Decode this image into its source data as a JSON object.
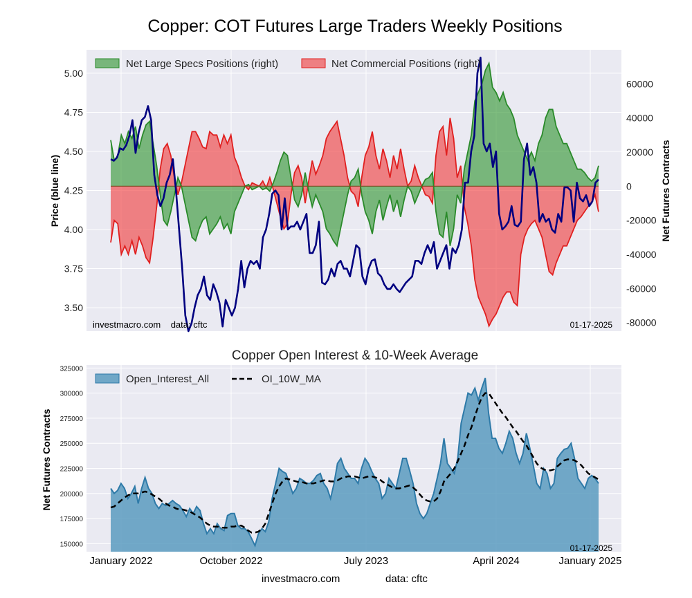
{
  "title": "Copper: COT Futures Large Traders Weekly Positions",
  "footer": {
    "left": "investmacro.com",
    "right": "data: cftc"
  },
  "x_ticks": [
    "January 2022",
    "October 2022",
    "July 2023",
    "April 2024",
    "January 2025"
  ],
  "colors": {
    "plot_bg": "#eaeaf2",
    "price_line": "#000080",
    "specs_fill": "#3a9a3a",
    "specs_line": "#2a8a2a",
    "comm_fill": "#f04545",
    "comm_line": "#e02020",
    "oi_fill": "#5b9bc0",
    "oi_line": "#2e7aa8",
    "ma_line": "#000000"
  },
  "chart_data": [
    {
      "type": "line",
      "title": "",
      "ylabel_left": "Price (blue line)",
      "ylabel_right": "Net Futures Contracts",
      "yticks_left": [
        "5.00",
        "4.75",
        "4.50",
        "4.25",
        "4.00",
        "3.75",
        "3.50"
      ],
      "yticks_right": [
        "60000",
        "40000",
        "20000",
        "0",
        "-20000",
        "-40000",
        "-60000",
        "-80000"
      ],
      "ylim_left": [
        3.35,
        5.15
      ],
      "ylim_right": [
        -85000,
        80000
      ],
      "legend_position": "top-left",
      "annotation_left": "investmacro.com    data: cftc",
      "annotation_right": "01-17-2025",
      "grid": true,
      "series": [
        {
          "name": "Net Large Specs Positions (right)",
          "axis": "right",
          "kind": "area",
          "values": [
            27000,
            15000,
            18000,
            30000,
            25000,
            32000,
            28000,
            35000,
            22000,
            30000,
            36000,
            38000,
            25000,
            12000,
            -5000,
            -20000,
            -23000,
            -15000,
            -5000,
            5000,
            0,
            -10000,
            -20000,
            -30000,
            -32000,
            -25000,
            -20000,
            -18000,
            -28000,
            -25000,
            -22000,
            -18000,
            -25000,
            -22000,
            -28000,
            -15000,
            -10000,
            -5000,
            0,
            1000,
            -2000,
            -1000,
            0,
            -2000,
            -1000,
            -3000,
            2000,
            8000,
            15000,
            20000,
            18000,
            5000,
            -8000,
            -12000,
            -5000,
            8000,
            -3000,
            -12000,
            -5000,
            -10000,
            -15000,
            -25000,
            -28000,
            -32000,
            -35000,
            -25000,
            -15000,
            -5000,
            3000,
            5000,
            10000,
            -5000,
            -15000,
            -20000,
            -28000,
            -15000,
            -8000,
            -20000,
            -12000,
            -5000,
            -15000,
            -8000,
            -18000,
            -8000,
            0,
            -3000,
            -10000,
            -5000,
            0,
            4000,
            5000,
            8000,
            -15000,
            -28000,
            -30000,
            -15000,
            -35000,
            -25000,
            -5000,
            -10000,
            10000,
            20000,
            30000,
            50000,
            55000,
            60000,
            68000,
            72000,
            58000,
            55000,
            50000,
            55000,
            48000,
            45000,
            40000,
            30000,
            25000,
            20000,
            15000,
            20000,
            15000,
            25000,
            30000,
            40000,
            45000,
            45000,
            35000,
            30000,
            25000,
            25000,
            20000,
            15000,
            10000,
            10000,
            8000,
            5000,
            3000,
            5000,
            12000
          ]
        },
        {
          "name": "Net Commercial Positions (right)",
          "axis": "right",
          "kind": "area",
          "values": [
            -33000,
            -20000,
            -22000,
            -40000,
            -35000,
            -40000,
            -32000,
            -40000,
            -30000,
            -35000,
            -42000,
            -45000,
            -30000,
            -12000,
            10000,
            22000,
            25000,
            18000,
            5000,
            -5000,
            2000,
            12000,
            22000,
            32000,
            32000,
            28000,
            23000,
            22000,
            32000,
            30000,
            30000,
            23000,
            30000,
            25000,
            30000,
            17000,
            12000,
            5000,
            0,
            -2000,
            2000,
            1000,
            0,
            3000,
            -1000,
            5000,
            -2000,
            -10000,
            -18000,
            -25000,
            -22000,
            -5000,
            8000,
            12000,
            5000,
            -10000,
            3000,
            15000,
            7000,
            12000,
            18000,
            28000,
            32000,
            35000,
            38000,
            28000,
            18000,
            5000,
            -3000,
            -5000,
            -12000,
            5000,
            18000,
            23000,
            32000,
            18000,
            10000,
            22000,
            15000,
            5000,
            18000,
            10000,
            22000,
            10000,
            0,
            3000,
            12000,
            5000,
            0,
            -5000,
            -6000,
            -10000,
            18000,
            32000,
            35000,
            18000,
            40000,
            28000,
            5000,
            12000,
            -12000,
            -22000,
            -35000,
            -55000,
            -65000,
            -70000,
            -75000,
            -82000,
            -78000,
            -75000,
            -70000,
            -65000,
            -62000,
            -62000,
            -68000,
            -70000,
            -40000,
            -30000,
            -25000,
            -22000,
            -20000,
            -25000,
            -30000,
            -40000,
            -50000,
            -52000,
            -45000,
            -40000,
            -35000,
            -35000,
            -30000,
            -25000,
            -20000,
            -18000,
            -15000,
            -12000,
            -10000,
            -5000,
            -15000
          ]
        },
        {
          "name": "Price",
          "axis": "left",
          "kind": "line",
          "values": [
            4.45,
            4.44,
            4.46,
            4.52,
            4.51,
            4.54,
            4.6,
            4.7,
            4.49,
            4.62,
            4.7,
            4.72,
            4.79,
            4.7,
            4.35,
            4.22,
            4.15,
            4.2,
            4.3,
            4.35,
            4.45,
            4.25,
            4.0,
            3.75,
            3.45,
            3.35,
            3.4,
            3.5,
            3.58,
            3.62,
            3.7,
            3.58,
            3.55,
            3.65,
            3.6,
            3.53,
            3.38,
            3.55,
            3.5,
            3.45,
            3.5,
            3.62,
            3.8,
            3.63,
            3.75,
            3.8,
            3.78,
            3.8,
            3.75,
            3.95,
            4.0,
            4.1,
            4.23,
            4.25,
            4.22,
            4.0,
            4.2,
            4.0,
            4.02,
            4.02,
            4.05,
            4.0,
            4.05,
            4.1,
            3.85,
            3.85,
            3.9,
            4.05,
            3.66,
            3.65,
            3.68,
            3.75,
            3.7,
            3.78,
            3.8,
            3.75,
            3.75,
            3.7,
            3.8,
            3.9,
            3.88,
            3.7,
            3.65,
            3.75,
            3.8,
            3.81,
            3.72,
            3.7,
            3.65,
            3.62,
            3.62,
            3.65,
            3.62,
            3.6,
            3.63,
            3.66,
            3.68,
            3.7,
            3.8,
            3.8,
            3.78,
            3.85,
            3.9,
            3.85,
            3.92,
            3.75,
            3.8,
            3.85,
            3.9,
            3.75,
            3.88,
            3.85,
            3.9,
            4.0,
            4.3,
            4.3,
            4.5,
            4.6,
            5.0,
            5.1,
            4.55,
            4.5,
            4.55,
            4.4,
            4.5,
            4.1,
            4.0,
            4.02,
            4.05,
            4.15,
            4.03,
            4.02,
            4.05,
            4.45,
            4.55,
            4.35,
            4.4,
            4.3,
            4.05,
            4.1,
            4.05,
            4.07,
            4.0,
            3.98,
            4.1,
            4.05,
            4.27,
            4.27,
            4.25,
            4.05,
            4.3,
            4.2,
            4.18,
            4.22,
            4.15,
            4.18,
            4.3,
            4.32
          ]
        }
      ]
    },
    {
      "type": "area",
      "title": "Copper Open Interest & 10-Week Average",
      "ylabel": "Net Futures Contracts",
      "yticks": [
        "325000",
        "300000",
        "275000",
        "250000",
        "225000",
        "200000",
        "175000",
        "150000"
      ],
      "ylim": [
        142000,
        328000
      ],
      "legend_position": "top-left",
      "annotation_right": "01-17-2025",
      "grid": true,
      "series": [
        {
          "name": "Open_Interest_All",
          "kind": "area",
          "values": [
            205000,
            200000,
            203000,
            210000,
            205000,
            195000,
            200000,
            207000,
            190000,
            205000,
            216000,
            205000,
            200000,
            190000,
            185000,
            190000,
            188000,
            190000,
            193000,
            190000,
            188000,
            183000,
            177000,
            185000,
            180000,
            187000,
            183000,
            170000,
            160000,
            165000,
            160000,
            170000,
            165000,
            163000,
            178000,
            180000,
            180000,
            168000,
            165000,
            165000,
            162000,
            155000,
            148000,
            160000,
            165000,
            162000,
            172000,
            195000,
            210000,
            225000,
            222000,
            220000,
            210000,
            200000,
            205000,
            215000,
            213000,
            210000,
            210000,
            213000,
            218000,
            220000,
            210000,
            205000,
            195000,
            210000,
            230000,
            235000,
            225000,
            220000,
            215000,
            215000,
            210000,
            225000,
            235000,
            230000,
            222000,
            215000,
            210000,
            195000,
            200000,
            215000,
            210000,
            205000,
            220000,
            235000,
            235000,
            223000,
            210000,
            190000,
            180000,
            175000,
            180000,
            190000,
            200000,
            215000,
            230000,
            255000,
            230000,
            225000,
            220000,
            235000,
            270000,
            285000,
            300000,
            298000,
            305000,
            293000,
            305000,
            315000,
            280000,
            255000,
            255000,
            245000,
            240000,
            250000,
            262000,
            255000,
            240000,
            230000,
            240000,
            260000,
            245000,
            228000,
            210000,
            205000,
            225000,
            220000,
            205000,
            210000,
            235000,
            240000,
            244000,
            245000,
            250000,
            235000,
            215000,
            210000,
            205000,
            215000,
            218000,
            215000,
            210000
          ]
        },
        {
          "name": "OI_10W_MA",
          "kind": "line",
          "values": [
            186000,
            187000,
            190000,
            193000,
            196000,
            198000,
            200000,
            200000,
            200000,
            201000,
            202000,
            201000,
            199000,
            197000,
            195000,
            192000,
            190000,
            188000,
            187000,
            185000,
            184000,
            184000,
            183000,
            182000,
            180000,
            178000,
            176000,
            173000,
            170000,
            168000,
            167000,
            167000,
            166000,
            166000,
            166000,
            167000,
            167000,
            168000,
            168000,
            166000,
            163000,
            161000,
            161000,
            162000,
            165000,
            170000,
            180000,
            190000,
            200000,
            207000,
            212000,
            215000,
            214000,
            213000,
            212000,
            211000,
            211000,
            210000,
            210000,
            210000,
            211000,
            212000,
            213000,
            213000,
            212000,
            212000,
            213000,
            215000,
            216000,
            217000,
            217000,
            217000,
            216000,
            215000,
            216000,
            217000,
            217000,
            216000,
            215000,
            212000,
            210000,
            208000,
            206000,
            205000,
            205000,
            206000,
            207000,
            208000,
            206000,
            203000,
            199000,
            195000,
            193000,
            192000,
            192000,
            195000,
            202000,
            212000,
            216000,
            220000,
            225000,
            232000,
            240000,
            248000,
            258000,
            266000,
            277000,
            287000,
            296000,
            300000,
            300000,
            295000,
            290000,
            285000,
            280000,
            276000,
            271000,
            266000,
            262000,
            257000,
            252000,
            248000,
            242000,
            236000,
            230000,
            226000,
            224000,
            223000,
            223000,
            224000,
            227000,
            230000,
            233000,
            234000,
            234000,
            233000,
            231000,
            228000,
            224000,
            220000,
            218000,
            216000,
            214000
          ]
        }
      ]
    }
  ]
}
